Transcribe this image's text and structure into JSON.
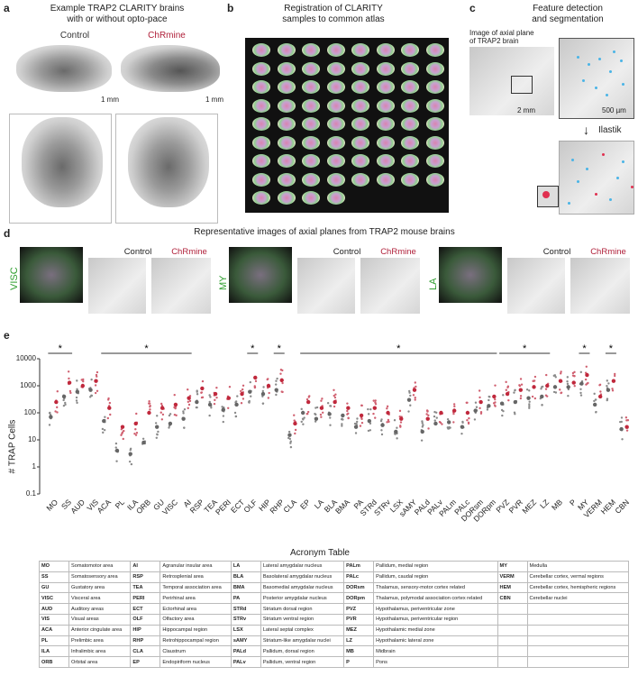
{
  "panels": {
    "a": "a",
    "b": "b",
    "c": "c",
    "d": "d",
    "e": "e"
  },
  "a": {
    "title_line1": "Example TRAP2 CLARITY brains",
    "title_line2": "with or without opto-pace",
    "control": "Control",
    "chrmine": "ChRmine",
    "scale": "1 mm"
  },
  "b": {
    "title_line1": "Registration of CLARITY",
    "title_line2": "samples to common atlas"
  },
  "c": {
    "title_line1": "Feature detection",
    "title_line2": "and segmentation",
    "inset_caption_1": "Image of axial plane",
    "inset_caption_2": "of TRAP2 brain",
    "scale_left": "2 mm",
    "scale_right": "500 µm",
    "ilastik": "Ilastik"
  },
  "d": {
    "title": "Representative images of axial planes from TRAP2 mouse brains",
    "regions": [
      "VISC",
      "MY",
      "LA"
    ],
    "control": "Control",
    "chrmine": "ChRmine"
  },
  "e": {
    "ylabel": "# TRAP Cells",
    "yticks": [
      "10000",
      "1000",
      "100",
      "10",
      "1",
      "0.1"
    ],
    "star": "*"
  },
  "colors": {
    "control": "#666666",
    "chrmine": "#c0283c",
    "region_label": "#2e9e2e"
  },
  "chart_data": {
    "type": "scatter",
    "ylabel": "# TRAP Cells",
    "yscale": "log",
    "ylim": [
      0.1,
      10000
    ],
    "categories": [
      "MO",
      "SS",
      "AUD",
      "VIS",
      "ACA",
      "PL",
      "ILA",
      "ORB",
      "GU",
      "VISC",
      "AI",
      "RSP",
      "TEA",
      "PERI",
      "ECT",
      "OLF",
      "HIP",
      "RHP",
      "CLA",
      "EP",
      "LA",
      "BLA",
      "BMA",
      "PA",
      "STRd",
      "STRv",
      "LSX",
      "sAMY",
      "PALd",
      "PALv",
      "PALm",
      "PALc",
      "DORsm",
      "DORpm",
      "PVZ",
      "PVR",
      "MEZ",
      "LZ",
      "MB",
      "P",
      "MY",
      "VERM",
      "HEM",
      "CBN"
    ],
    "series": [
      {
        "name": "Control",
        "values": [
          70,
          400,
          600,
          700,
          50,
          4,
          3,
          8,
          30,
          40,
          60,
          250,
          200,
          130,
          200,
          600,
          500,
          700,
          15,
          100,
          60,
          90,
          80,
          30,
          50,
          35,
          20,
          300,
          20,
          40,
          45,
          30,
          120,
          180,
          220,
          250,
          350,
          400,
          900,
          900,
          1200,
          200,
          700,
          25
        ]
      },
      {
        "name": "ChRmine",
        "values": [
          250,
          1300,
          1000,
          1500,
          150,
          30,
          40,
          100,
          150,
          200,
          350,
          800,
          500,
          350,
          500,
          2000,
          1000,
          1600,
          40,
          250,
          150,
          250,
          150,
          80,
          150,
          100,
          60,
          700,
          60,
          100,
          120,
          100,
          250,
          400,
          500,
          700,
          900,
          1000,
          1500,
          1300,
          2500,
          400,
          1500,
          30
        ]
      }
    ],
    "significance": [
      {
        "label": "*",
        "from": "MO",
        "to": "SS"
      },
      {
        "label": "*",
        "from": "ACA",
        "to": "AI"
      },
      {
        "label": "*",
        "from": "OLF",
        "to": "OLF"
      },
      {
        "label": "*",
        "from": "RHP",
        "to": "RHP"
      },
      {
        "label": "*",
        "from": "EP",
        "to": "DORpm"
      },
      {
        "label": "*",
        "from": "PVZ",
        "to": "LZ"
      },
      {
        "label": "*",
        "from": "MY",
        "to": "MY"
      },
      {
        "label": "*",
        "from": "HEM",
        "to": "HEM"
      }
    ]
  },
  "table": {
    "title": "Acronym Table",
    "rows": [
      [
        [
          "MO",
          "Somatomotor area"
        ],
        [
          "AI",
          "Agranular insular area"
        ],
        [
          "LA",
          "Lateral amygdalar nucleus"
        ],
        [
          "PALm",
          "Pallidum, medial region"
        ],
        [
          "MY",
          "Medulla"
        ]
      ],
      [
        [
          "SS",
          "Somatosensory area"
        ],
        [
          "RSP",
          "Retrosplenial area"
        ],
        [
          "BLA",
          "Basolateral amygdalar nucleus"
        ],
        [
          "PALc",
          "Pallidum, caudal region"
        ],
        [
          "VERM",
          "Cerebellar cortex, vermal regions"
        ]
      ],
      [
        [
          "GU",
          "Gustatory area"
        ],
        [
          "TEA",
          "Temporal association area"
        ],
        [
          "BMA",
          "Basomedial amygdalar nucleus"
        ],
        [
          "DORsm",
          "Thalamus, sensory-motor cortex related"
        ],
        [
          "HEM",
          "Cerebellar cortex, hemispheric regions"
        ]
      ],
      [
        [
          "VISC",
          "Visceral area"
        ],
        [
          "PERI",
          "Perirhinal area"
        ],
        [
          "PA",
          "Posterior amygdalar nucleus"
        ],
        [
          "DORpm",
          "Thalamus, polymodal association cortex related"
        ],
        [
          "CBN",
          "Cerebellar nuclei"
        ]
      ],
      [
        [
          "AUD",
          "Auditory areas"
        ],
        [
          "ECT",
          "Ectorhinal area"
        ],
        [
          "STRd",
          "Striatum dorsal region"
        ],
        [
          "PVZ",
          "Hypothalamus, periventricular zone"
        ],
        [
          "",
          ""
        ]
      ],
      [
        [
          "VIS",
          "Visual areas"
        ],
        [
          "OLF",
          "Olfactory area"
        ],
        [
          "STRv",
          "Striatum ventral region"
        ],
        [
          "PVR",
          "Hypothalamus, periventricular region"
        ],
        [
          "",
          ""
        ]
      ],
      [
        [
          "ACA",
          "Anterior cingulate area"
        ],
        [
          "HIP",
          "Hippocampal region"
        ],
        [
          "LSX",
          "Lateral septal complex"
        ],
        [
          "MEZ",
          "Hypothalamic medial zone"
        ],
        [
          "",
          ""
        ]
      ],
      [
        [
          "PL",
          "Prelimbic area"
        ],
        [
          "RHP",
          "Retrohippocampal region"
        ],
        [
          "sAMY",
          "Striatum-like amygdalar nuclei"
        ],
        [
          "LZ",
          "Hypothalamic lateral zone"
        ],
        [
          "",
          ""
        ]
      ],
      [
        [
          "ILA",
          "Infralimbic area"
        ],
        [
          "CLA",
          "Claustrum"
        ],
        [
          "PALd",
          "Pallidum, dorsal region"
        ],
        [
          "MB",
          "Midbrain"
        ],
        [
          "",
          ""
        ]
      ],
      [
        [
          "ORB",
          "Orbital area"
        ],
        [
          "EP",
          "Endopiriform nucleus"
        ],
        [
          "PALv",
          "Pallidum, ventral region"
        ],
        [
          "P",
          "Pons"
        ],
        [
          "",
          ""
        ]
      ]
    ]
  }
}
